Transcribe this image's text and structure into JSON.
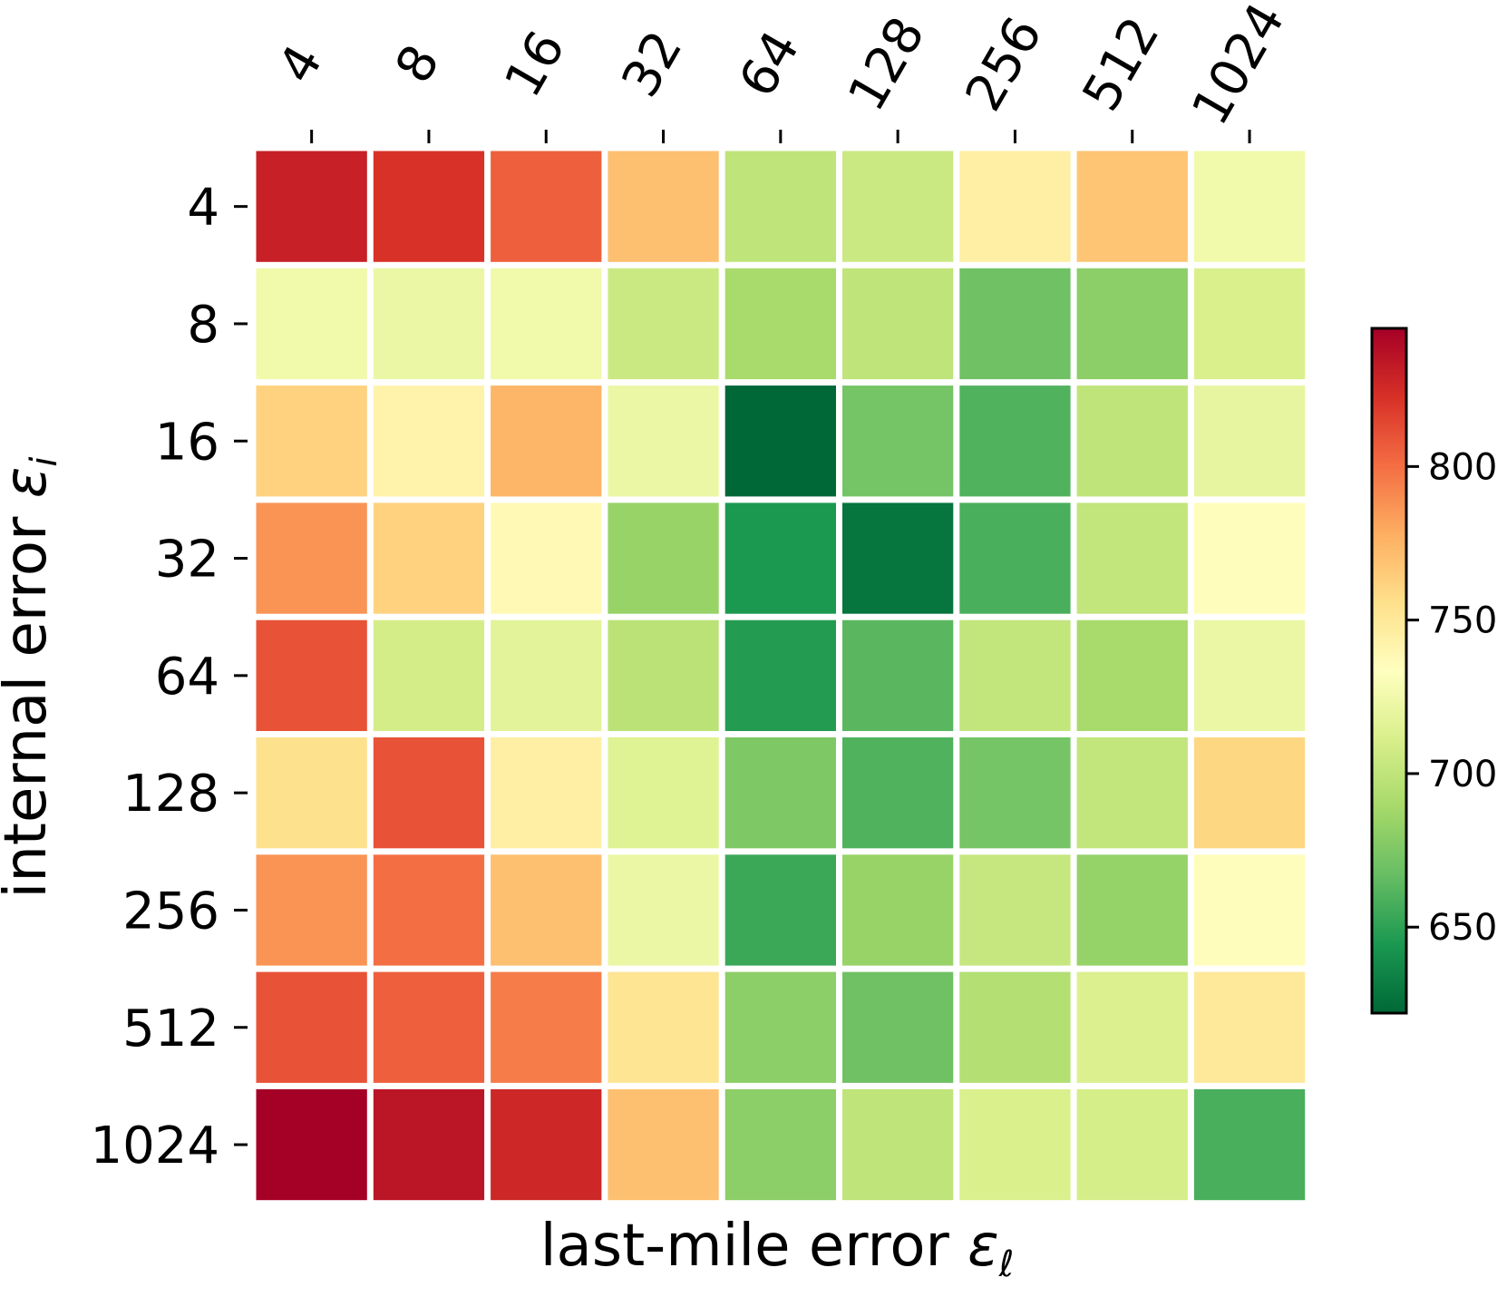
{
  "chart_data": {
    "type": "heatmap",
    "x_categories": [
      "4",
      "8",
      "16",
      "32",
      "64",
      "128",
      "256",
      "512",
      "1024"
    ],
    "y_categories": [
      "4",
      "8",
      "16",
      "32",
      "64",
      "128",
      "256",
      "512",
      "1024"
    ],
    "xlabel": "last-mile error ",
    "xlabel_symbol": "ε",
    "xlabel_subscript": "ℓ",
    "ylabel": "internal error ",
    "ylabel_symbol": "ε",
    "ylabel_subscript": "i",
    "x_tick_position": "top",
    "colormap": "RdYlGn_r",
    "colorbar": {
      "min": 622,
      "max": 845,
      "ticks": [
        "650",
        "700",
        "750",
        "800"
      ],
      "tick_values": [
        650,
        700,
        750,
        800
      ],
      "placement": "right"
    },
    "values": [
      [
        830,
        822,
        805,
        770,
        700,
        705,
        745,
        768,
        725
      ],
      [
        725,
        722,
        725,
        705,
        690,
        700,
        670,
        680,
        712
      ],
      [
        762,
        742,
        775,
        722,
        622,
        672,
        660,
        700,
        720
      ],
      [
        787,
        762,
        738,
        684,
        645,
        628,
        658,
        701,
        735
      ],
      [
        810,
        709,
        717,
        698,
        647,
        663,
        701,
        690,
        722
      ],
      [
        755,
        810,
        745,
        715,
        675,
        660,
        672,
        701,
        760
      ],
      [
        787,
        800,
        770,
        722,
        654,
        684,
        703,
        683,
        735
      ],
      [
        810,
        805,
        795,
        752,
        680,
        670,
        695,
        713,
        750
      ],
      [
        845,
        835,
        827,
        770,
        680,
        700,
        712,
        710,
        658
      ]
    ],
    "grid": false
  },
  "colors": {
    "cell_separator": "#ffffff",
    "text": "#000000",
    "colormap_stops": [
      "#006837",
      "#1a9850",
      "#66bd63",
      "#a6d96a",
      "#d9ef8b",
      "#ffffbf",
      "#fee08b",
      "#fdae61",
      "#f46d43",
      "#d73027",
      "#a50026"
    ]
  }
}
